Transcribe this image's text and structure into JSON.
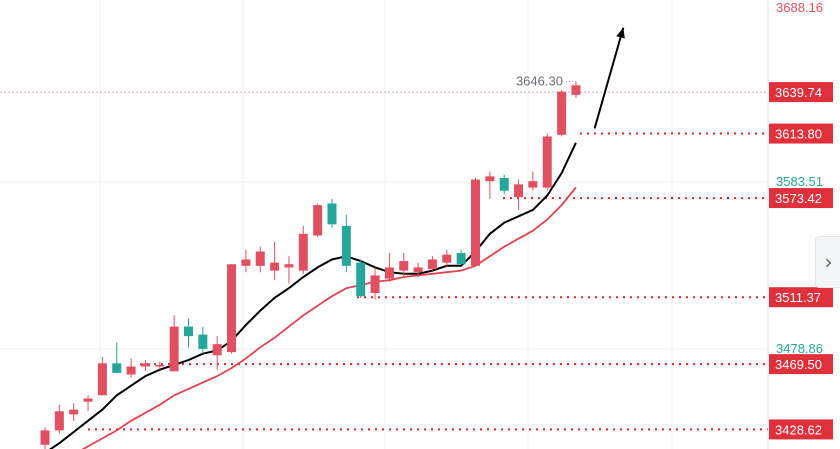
{
  "colors": {
    "up": "#e05060",
    "down": "#26a69a",
    "ma_fast": "#000000",
    "ma_slow": "#e0444e",
    "level_line": "#e8202a",
    "grid": "#eef0f3",
    "axis_text_gray": "#8a8f99",
    "axis_text_red": "#e8505a",
    "axis_text_teal": "#26a69a",
    "badge_bg": "#e0303c"
  },
  "chart_data": {
    "type": "candlestick",
    "y_axis": {
      "min": 3422,
      "max": 3693,
      "scale": "linear",
      "side": "right",
      "top_label": "3688.16",
      "tick_labels": [
        {
          "value": 3583.51,
          "text": "3583.51",
          "color": "teal"
        },
        {
          "value": 3478.86,
          "text": "3478.86",
          "color": "teal"
        }
      ],
      "badges": [
        {
          "value": 3639.74,
          "text": "3639.74",
          "style": "dashed-light"
        },
        {
          "value": 3613.8,
          "text": "3613.80",
          "style": "dotted"
        },
        {
          "value": 3573.42,
          "text": "3573.42",
          "style": "dotted"
        },
        {
          "value": 3511.37,
          "text": "3511.37",
          "style": "dotted"
        },
        {
          "value": 3469.5,
          "text": "3469.50",
          "style": "dotted"
        },
        {
          "value": 3428.62,
          "text": "3428.62",
          "style": "dotted"
        }
      ]
    },
    "high_marker": {
      "value": 3646.3,
      "text": "3646.30"
    },
    "grid": true,
    "candles": [
      {
        "o": 3419,
        "h": 3430,
        "l": 3415,
        "c": 3428
      },
      {
        "o": 3428,
        "h": 3444,
        "l": 3426,
        "c": 3440
      },
      {
        "o": 3438,
        "h": 3445,
        "l": 3434,
        "c": 3441
      },
      {
        "o": 3446,
        "h": 3450,
        "l": 3440,
        "c": 3448
      },
      {
        "o": 3450,
        "h": 3474,
        "l": 3450,
        "c": 3470
      },
      {
        "o": 3470,
        "h": 3483,
        "l": 3464,
        "c": 3464
      },
      {
        "o": 3463,
        "h": 3473,
        "l": 3461,
        "c": 3468
      },
      {
        "o": 3468,
        "h": 3472,
        "l": 3465,
        "c": 3470
      },
      {
        "o": 3468,
        "h": 3471,
        "l": 3466,
        "c": 3469
      },
      {
        "o": 3465,
        "h": 3500,
        "l": 3465,
        "c": 3493
      },
      {
        "o": 3493,
        "h": 3498,
        "l": 3480,
        "c": 3487
      },
      {
        "o": 3488,
        "h": 3493,
        "l": 3476,
        "c": 3479
      },
      {
        "o": 3475,
        "h": 3487,
        "l": 3466,
        "c": 3482
      },
      {
        "o": 3477,
        "h": 3532,
        "l": 3476,
        "c": 3532
      },
      {
        "o": 3531,
        "h": 3541,
        "l": 3527,
        "c": 3535
      },
      {
        "o": 3531,
        "h": 3543,
        "l": 3527,
        "c": 3540
      },
      {
        "o": 3528,
        "h": 3546,
        "l": 3522,
        "c": 3533
      },
      {
        "o": 3530,
        "h": 3537,
        "l": 3520,
        "c": 3532
      },
      {
        "o": 3528,
        "h": 3556,
        "l": 3526,
        "c": 3551
      },
      {
        "o": 3550,
        "h": 3570,
        "l": 3549,
        "c": 3569
      },
      {
        "o": 3570,
        "h": 3573,
        "l": 3555,
        "c": 3557
      },
      {
        "o": 3556,
        "h": 3563,
        "l": 3527,
        "c": 3531
      },
      {
        "o": 3533,
        "h": 3535,
        "l": 3511,
        "c": 3512
      },
      {
        "o": 3514,
        "h": 3530,
        "l": 3510,
        "c": 3525
      },
      {
        "o": 3523,
        "h": 3539,
        "l": 3521,
        "c": 3530
      },
      {
        "o": 3528,
        "h": 3539,
        "l": 3524,
        "c": 3534
      },
      {
        "o": 3527,
        "h": 3533,
        "l": 3524,
        "c": 3530
      },
      {
        "o": 3529,
        "h": 3537,
        "l": 3528,
        "c": 3535
      },
      {
        "o": 3533,
        "h": 3541,
        "l": 3530,
        "c": 3538
      },
      {
        "o": 3539,
        "h": 3541,
        "l": 3532,
        "c": 3532
      },
      {
        "o": 3531,
        "h": 3586,
        "l": 3531,
        "c": 3585
      },
      {
        "o": 3584,
        "h": 3590,
        "l": 3573,
        "c": 3587
      },
      {
        "o": 3586,
        "h": 3588,
        "l": 3576,
        "c": 3578
      },
      {
        "o": 3574,
        "h": 3585,
        "l": 3566,
        "c": 3582
      },
      {
        "o": 3580,
        "h": 3590,
        "l": 3578,
        "c": 3584
      },
      {
        "o": 3580,
        "h": 3614,
        "l": 3578,
        "c": 3612
      },
      {
        "o": 3613,
        "h": 3641,
        "l": 3612,
        "c": 3640
      },
      {
        "o": 3638,
        "h": 3646.3,
        "l": 3636,
        "c": 3644
      }
    ],
    "ma_fast": [
      3414,
      3420,
      3427,
      3434,
      3441,
      3450,
      3456,
      3462,
      3466,
      3469,
      3472,
      3476,
      3478,
      3484,
      3494,
      3503,
      3511,
      3517,
      3524,
      3530,
      3535,
      3537,
      3534,
      3530,
      3527,
      3526,
      3526,
      3528,
      3531,
      3531,
      3540,
      3551,
      3558,
      3562,
      3566,
      3575,
      3589,
      3608
    ],
    "ma_slow": [
      null,
      3407,
      3413,
      3418,
      3423,
      3428,
      3434,
      3439,
      3444,
      3450,
      3454,
      3458,
      3462,
      3467,
      3473,
      3480,
      3486,
      3493,
      3500,
      3506,
      3512,
      3517,
      3519,
      3521,
      3522,
      3524,
      3525,
      3526,
      3527,
      3528,
      3531,
      3537,
      3543,
      3548,
      3553,
      3560,
      3569,
      3580
    ],
    "arrow": {
      "from": [
        38.3,
        3617
      ],
      "to": [
        40.3,
        3680
      ]
    }
  },
  "side_handle": {
    "icon": "chevron-right-icon",
    "glyph": "›"
  }
}
